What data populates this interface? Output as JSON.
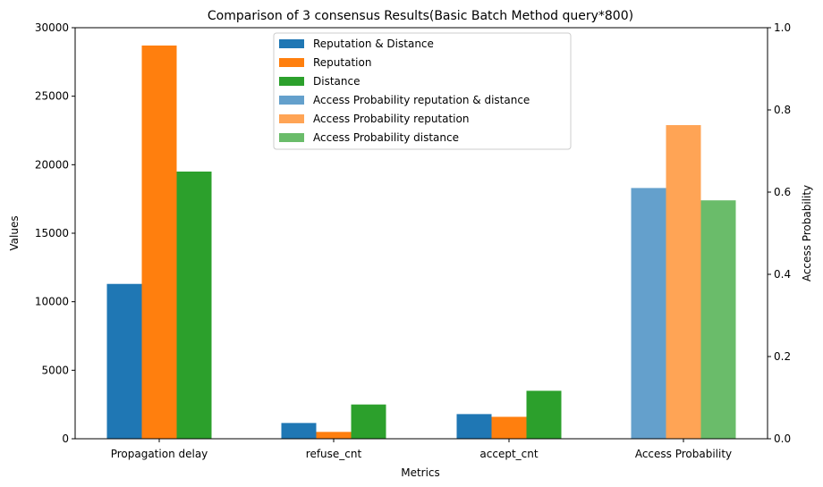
{
  "chart_data": {
    "type": "bar",
    "title": "Comparison of 3 consensus Results(Basic Batch Method query*800)",
    "xlabel": "Metrics",
    "ylabel": "Values",
    "y2label": "Access Probability",
    "categories": [
      "Propagation delay",
      "refuse_cnt",
      "accept_cnt",
      "Access Probability"
    ],
    "ylim": [
      0,
      30000
    ],
    "yticks": [
      0,
      5000,
      10000,
      15000,
      20000,
      25000,
      30000
    ],
    "y2lim": [
      0,
      1.0
    ],
    "y2ticks": [
      "0.0",
      "0.2",
      "0.4",
      "0.6",
      "0.8",
      "1.0"
    ],
    "legend_position": "top-center",
    "series": [
      {
        "name": "Reputation & Distance",
        "axis": "left",
        "color": "#1f77b4",
        "values": [
          11300,
          1150,
          1800,
          null
        ]
      },
      {
        "name": "Reputation",
        "axis": "left",
        "color": "#ff7f0e",
        "values": [
          28700,
          500,
          1600,
          null
        ]
      },
      {
        "name": "Distance",
        "axis": "left",
        "color": "#2ca02c",
        "values": [
          19500,
          2500,
          3500,
          null
        ]
      },
      {
        "name": "Access Probability reputation & distance",
        "axis": "right",
        "color": "#64a0cc",
        "values": [
          null,
          null,
          null,
          0.61
        ]
      },
      {
        "name": "Access Probability reputation",
        "axis": "right",
        "color": "#ffa455",
        "values": [
          null,
          null,
          null,
          0.763
        ]
      },
      {
        "name": "Access Probability distance",
        "axis": "right",
        "color": "#6abc6a",
        "values": [
          null,
          null,
          null,
          0.58
        ]
      }
    ]
  }
}
